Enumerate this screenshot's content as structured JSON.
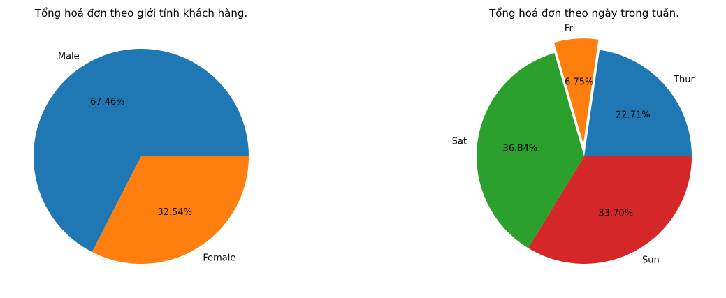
{
  "chart_data": [
    {
      "type": "pie",
      "title": "Tổng hoá đơn theo giới tính khách hàng.",
      "categories": [
        "Male",
        "Female"
      ],
      "values": [
        67.46,
        32.54
      ],
      "value_labels": [
        "67.46%",
        "32.54%"
      ],
      "colors": [
        "#1f77b4",
        "#ff7f0e"
      ],
      "explode": [
        0,
        0
      ]
    },
    {
      "type": "pie",
      "title": "Tổng hoá đơn theo ngày trong tuần.",
      "categories": [
        "Thur",
        "Fri",
        "Sat",
        "Sun"
      ],
      "values": [
        22.71,
        6.75,
        36.84,
        33.7
      ],
      "value_labels": [
        "22.71%",
        "6.75%",
        "36.84%",
        "33.70%"
      ],
      "colors": [
        "#1f77b4",
        "#ff7f0e",
        "#2ca02c",
        "#d62728"
      ],
      "explode": [
        0,
        0.1,
        0,
        0
      ]
    }
  ]
}
